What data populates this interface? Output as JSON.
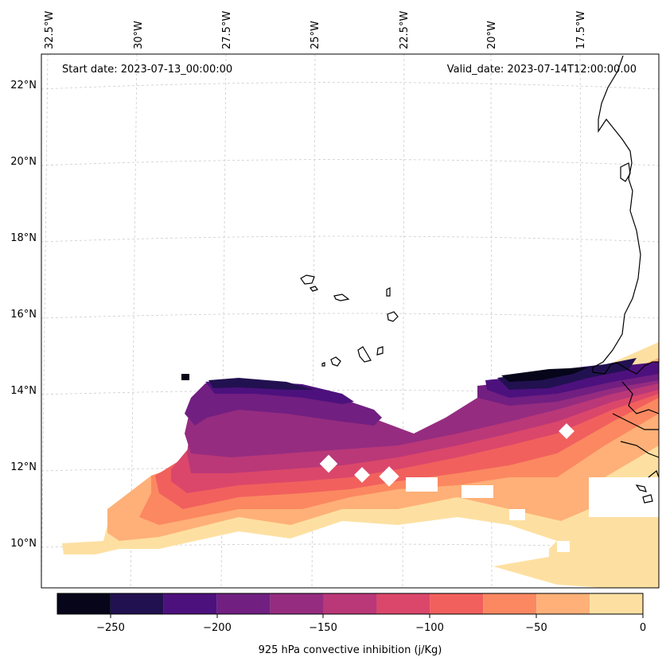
{
  "map": {
    "start_date": "Start date: 2023-07-13_00:00:00",
    "valid_date": "Valid_date: 2023-07-14T12:00:00.00",
    "lon_labels": [
      "32.5°W",
      "30°W",
      "27.5°W",
      "25°W",
      "22.5°W",
      "20°W",
      "17.5°W"
    ],
    "lat_labels": [
      "22°N",
      "20°N",
      "18°N",
      "16°N",
      "14°N",
      "12°N",
      "10°N"
    ],
    "gridlines": true
  },
  "colorbar": {
    "title": "925 hPa convective inhibition (j/Kg)",
    "tick_labels": [
      "−250",
      "−200",
      "−150",
      "−100",
      "−50",
      "0"
    ],
    "levels": [
      -275,
      -250,
      -225,
      -200,
      -175,
      -150,
      -125,
      -100,
      -75,
      -50,
      -25,
      0
    ],
    "colors": [
      "#06051a",
      "#221150",
      "#4d117d",
      "#711f81",
      "#952c80",
      "#ba3878",
      "#db476a",
      "#f1605d",
      "#fb8861",
      "#feb078",
      "#fde0a1"
    ]
  }
}
